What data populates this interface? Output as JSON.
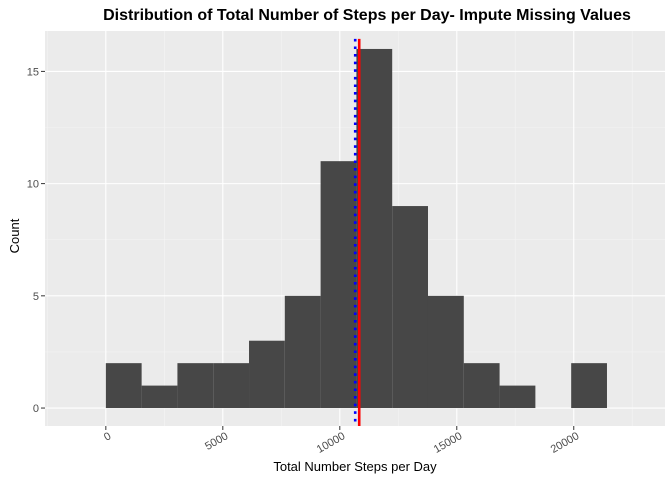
{
  "chart_data": {
    "type": "bar",
    "title": "Distribution of Total Number of Steps per Day- Impute Missing Values",
    "xlabel": "Total Number Steps per Day",
    "ylabel": "Count",
    "xlim": [
      -2600,
      23900
    ],
    "ylim": [
      -0.8,
      16.8
    ],
    "x_ticks": [
      0,
      5000,
      10000,
      15000,
      20000
    ],
    "y_ticks": [
      0,
      5,
      10,
      15
    ],
    "x_tick_labels": [
      "0",
      "5000",
      "10000",
      "15000",
      "20000"
    ],
    "y_tick_labels": [
      "0",
      "5",
      "10",
      "15"
    ],
    "bin_width": 1530,
    "bins": [
      {
        "start": 0,
        "end": 1530,
        "count": 2
      },
      {
        "start": 1530,
        "end": 3060,
        "count": 1
      },
      {
        "start": 3060,
        "end": 4590,
        "count": 2
      },
      {
        "start": 4590,
        "end": 6120,
        "count": 2
      },
      {
        "start": 6120,
        "end": 7650,
        "count": 3
      },
      {
        "start": 7650,
        "end": 9180,
        "count": 5
      },
      {
        "start": 9180,
        "end": 10710,
        "count": 11
      },
      {
        "start": 10710,
        "end": 12240,
        "count": 16
      },
      {
        "start": 12240,
        "end": 13770,
        "count": 9
      },
      {
        "start": 13770,
        "end": 15300,
        "count": 5
      },
      {
        "start": 15300,
        "end": 16830,
        "count": 2
      },
      {
        "start": 16830,
        "end": 18360,
        "count": 1
      },
      {
        "start": 18360,
        "end": 19890,
        "count": 0
      },
      {
        "start": 19890,
        "end": 21420,
        "count": 2
      }
    ],
    "reference_lines": [
      {
        "x": 10766,
        "color": "#ff0000",
        "style": "solid"
      },
      {
        "x": 10766,
        "color": "#0000ff",
        "style": "dotted"
      }
    ],
    "grid": true,
    "legend": "none",
    "colors": {
      "bar": "#474747",
      "panel": "#ebebeb",
      "grid_major": "#ffffff",
      "grid_minor": "#f4f4f4"
    }
  }
}
